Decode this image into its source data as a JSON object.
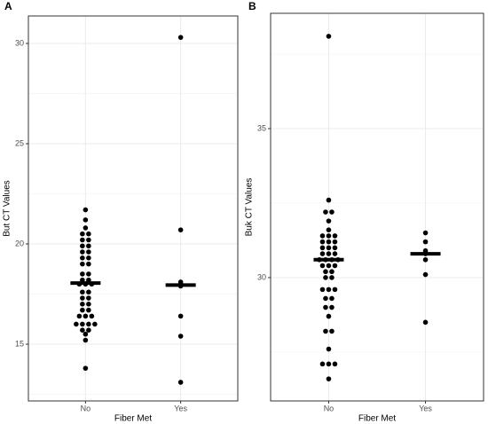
{
  "chart_data": [
    {
      "type": "dot",
      "panel_label": "A",
      "xlabel": "Fiber Met",
      "ylabel": "But CT Values",
      "categories": [
        "No",
        "Yes"
      ],
      "values": [
        [
          21.7,
          21.2,
          20.8,
          20.5,
          20.5,
          20.2,
          20.2,
          19.9,
          19.9,
          19.6,
          19.6,
          19.3,
          19.3,
          19.0,
          19.0,
          18.5,
          18.5,
          18.2,
          18.2,
          18.0,
          18.0,
          18.0,
          17.6,
          17.6,
          17.3,
          17.3,
          17.0,
          17.0,
          16.7,
          16.7,
          16.4,
          16.4,
          16.4,
          16.0,
          16.0,
          16.0,
          16.0,
          15.7,
          15.7,
          15.5,
          15.2,
          13.8
        ],
        [
          30.3,
          20.7,
          18.1,
          18.0,
          17.9,
          16.4,
          15.4,
          13.1
        ]
      ],
      "medians": [
        18.05,
        17.95
      ],
      "color": "#000000",
      "ylim": [
        12.17,
        31.37
      ],
      "yticks": [
        15,
        20,
        25,
        30
      ],
      "yminor": [
        12.5,
        17.5,
        22.5,
        27.5
      ],
      "grid": true
    },
    {
      "type": "dot",
      "panel_label": "B",
      "xlabel": "Fiber Met",
      "ylabel": "Buk CT Values",
      "categories": [
        "No",
        "Yes"
      ],
      "values": [
        [
          38.1,
          32.6,
          32.2,
          32.2,
          31.9,
          31.6,
          31.4,
          31.4,
          31.4,
          31.2,
          31.2,
          31.2,
          31.0,
          31.0,
          31.0,
          30.8,
          30.8,
          30.8,
          30.6,
          30.6,
          30.6,
          30.6,
          30.4,
          30.4,
          30.4,
          30.2,
          30.2,
          30.0,
          30.0,
          29.6,
          29.6,
          29.6,
          29.3,
          29.3,
          29.0,
          29.0,
          28.7,
          28.2,
          28.2,
          27.6,
          27.1,
          27.1,
          27.1,
          26.6
        ],
        [
          31.5,
          31.2,
          30.9,
          30.8,
          30.6,
          30.1,
          28.5
        ]
      ],
      "medians": [
        30.6,
        30.8
      ],
      "color": "#000000",
      "ylim": [
        25.86,
        38.87
      ],
      "yticks": [
        30,
        35
      ],
      "yminor": [
        27.5,
        32.5,
        37.5
      ],
      "grid": true
    }
  ]
}
